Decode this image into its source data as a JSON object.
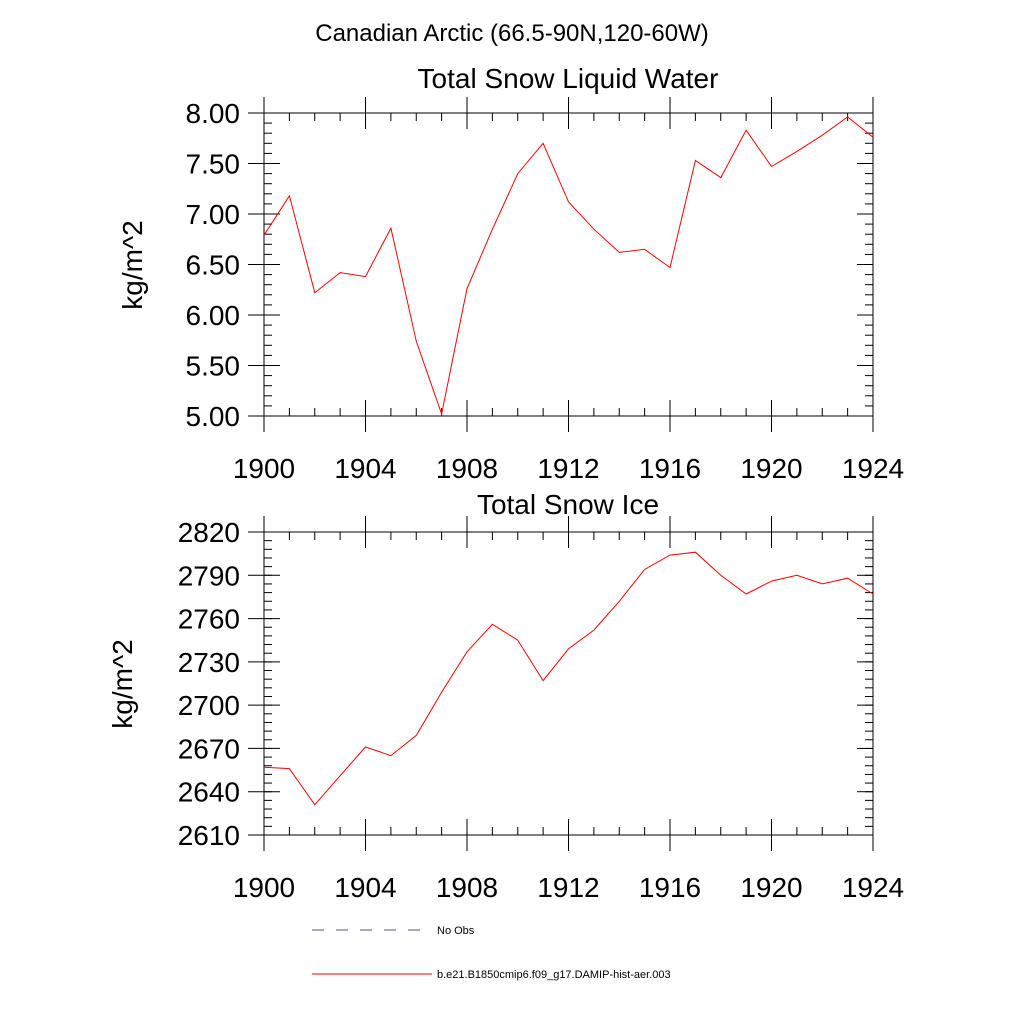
{
  "main_title": "Canadian Arctic (66.5-90N,120-60W)",
  "chart_data": [
    {
      "type": "line",
      "title": "Total Snow Liquid Water",
      "ylabel": "kg/m^2",
      "xlabel": "",
      "xlim": [
        1900,
        1924
      ],
      "ylim": [
        5.0,
        8.0
      ],
      "x_ticks": [
        1900,
        1904,
        1908,
        1912,
        1916,
        1920,
        1924
      ],
      "x_tick_labels": [
        "1900",
        "1904",
        "1908",
        "1912",
        "1916",
        "1920",
        "1924"
      ],
      "y_ticks": [
        5.0,
        5.5,
        6.0,
        6.5,
        7.0,
        7.5,
        8.0
      ],
      "y_tick_labels": [
        "5.00",
        "5.50",
        "6.00",
        "6.50",
        "7.00",
        "7.50",
        "8.00"
      ],
      "y_minor_step": 0.1,
      "x_minor_step": 1,
      "series": [
        {
          "color": "#ff0000",
          "x": [
            1900,
            1901,
            1902,
            1903,
            1904,
            1905,
            1906,
            1907,
            1908,
            1909,
            1910,
            1911,
            1912,
            1913,
            1914,
            1915,
            1916,
            1917,
            1918,
            1919,
            1920,
            1921,
            1922,
            1923,
            1924
          ],
          "y": [
            6.79,
            7.18,
            6.22,
            6.42,
            6.38,
            6.86,
            5.74,
            5.02,
            6.26,
            6.85,
            7.4,
            7.7,
            7.12,
            6.85,
            6.62,
            6.65,
            6.47,
            7.53,
            7.36,
            7.83,
            7.47,
            7.62,
            7.78,
            7.96,
            7.76
          ]
        }
      ]
    },
    {
      "type": "line",
      "title": "Total Snow Ice",
      "ylabel": "kg/m^2",
      "xlabel": "",
      "xlim": [
        1900,
        1924
      ],
      "ylim": [
        2610,
        2820
      ],
      "x_ticks": [
        1900,
        1904,
        1908,
        1912,
        1916,
        1920,
        1924
      ],
      "x_tick_labels": [
        "1900",
        "1904",
        "1908",
        "1912",
        "1916",
        "1920",
        "1924"
      ],
      "y_ticks": [
        2610,
        2640,
        2670,
        2700,
        2730,
        2760,
        2790,
        2820
      ],
      "y_tick_labels": [
        "2610",
        "2640",
        "2670",
        "2700",
        "2730",
        "2760",
        "2790",
        "2820"
      ],
      "y_minor_step": 6,
      "x_minor_step": 1,
      "series": [
        {
          "color": "#ff0000",
          "x": [
            1900,
            1901,
            1902,
            1903,
            1904,
            1905,
            1906,
            1907,
            1908,
            1909,
            1910,
            1911,
            1912,
            1913,
            1914,
            1915,
            1916,
            1917,
            1918,
            1919,
            1920,
            1921,
            1922,
            1923,
            1924
          ],
          "y": [
            2657,
            2656,
            2631,
            2651,
            2671,
            2665,
            2679,
            2709,
            2737,
            2756,
            2745,
            2717,
            2739,
            2752,
            2772,
            2794,
            2804,
            2806,
            2790,
            2777,
            2786,
            2790,
            2784,
            2788,
            2777
          ]
        }
      ]
    }
  ],
  "legend": [
    {
      "label": "No Obs",
      "color": "#55557a",
      "style": "dashed"
    },
    {
      "label": "b.e21.B1850cmip6.f09_g17.DAMIP-hist-aer.003",
      "color": "#ff0000",
      "style": "solid"
    }
  ]
}
